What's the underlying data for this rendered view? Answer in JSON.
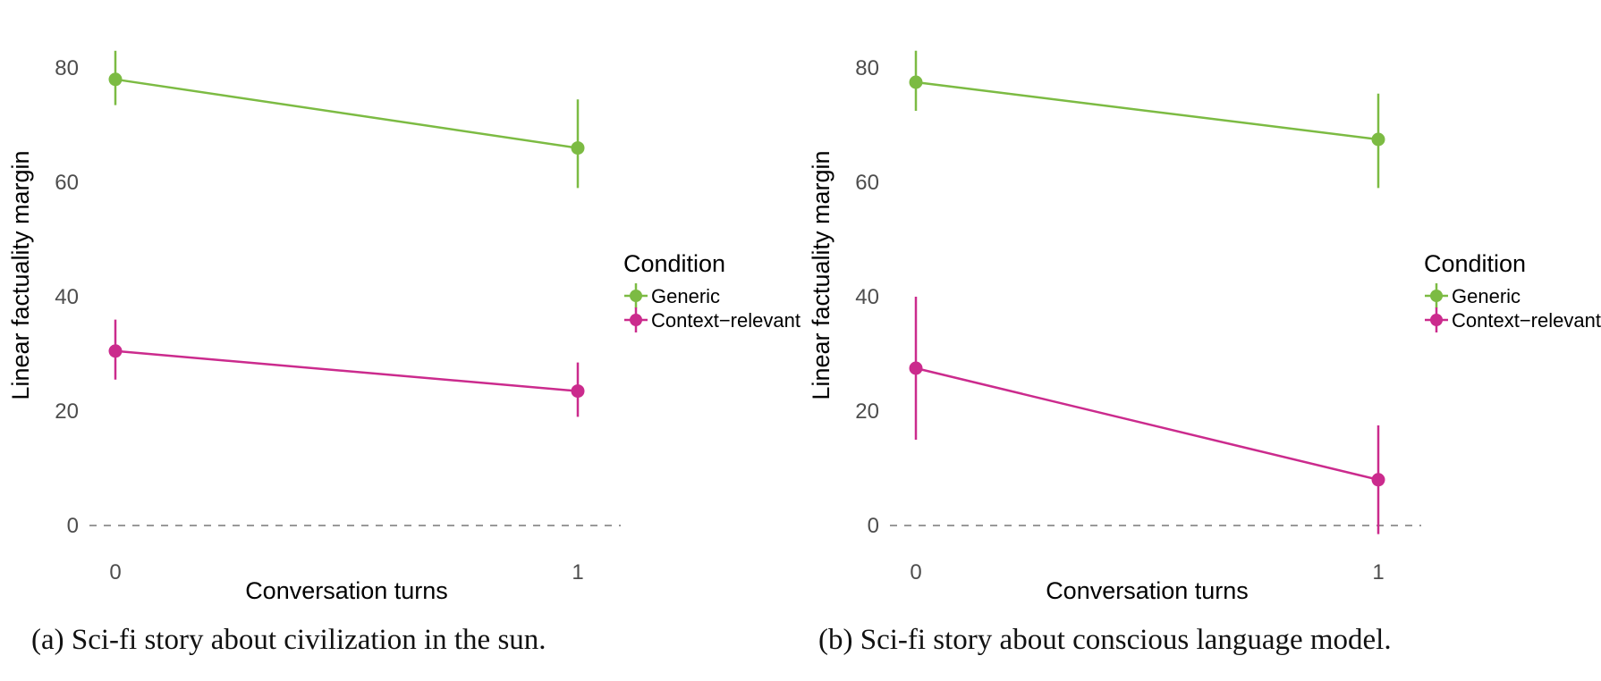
{
  "chart_data": [
    {
      "type": "line",
      "caption": "(a) Sci-fi story about civilization in the sun.",
      "xlabel": "Conversation turns",
      "ylabel": "Linear factuality margin",
      "x": [
        0,
        1
      ],
      "xtick_labels": [
        "0",
        "1"
      ],
      "yticks": [
        0,
        20,
        40,
        60,
        80
      ],
      "ylim": [
        -8,
        88
      ],
      "grid": "off",
      "zero_line": "dashed",
      "legend_title": "Condition",
      "legend_position": "right",
      "series": [
        {
          "name": "Generic",
          "color": "#7cbb43",
          "values": [
            78,
            66
          ],
          "ci_low": [
            73.5,
            59
          ],
          "ci_high": [
            83,
            74.5
          ]
        },
        {
          "name": "Context−relevant",
          "color": "#cb2b8d",
          "values": [
            30.5,
            23.5
          ],
          "ci_low": [
            25.5,
            19
          ],
          "ci_high": [
            36,
            28.5
          ]
        }
      ]
    },
    {
      "type": "line",
      "caption": "(b) Sci-fi story about conscious language model.",
      "xlabel": "Conversation turns",
      "ylabel": "Linear factuality margin",
      "x": [
        0,
        1
      ],
      "xtick_labels": [
        "0",
        "1"
      ],
      "yticks": [
        0,
        20,
        40,
        60,
        80
      ],
      "ylim": [
        -8,
        88
      ],
      "grid": "off",
      "zero_line": "dashed",
      "legend_title": "Condition",
      "legend_position": "right",
      "series": [
        {
          "name": "Generic",
          "color": "#7cbb43",
          "values": [
            77.5,
            67.5
          ],
          "ci_low": [
            72.5,
            59
          ],
          "ci_high": [
            83,
            75.5
          ]
        },
        {
          "name": "Context−relevant",
          "color": "#cb2b8d",
          "values": [
            27.5,
            8
          ],
          "ci_low": [
            15,
            -1.5
          ],
          "ci_high": [
            40,
            17.5
          ]
        }
      ]
    }
  ],
  "style": {
    "tick_label_color": "#4d4d4d",
    "axis_title_color": "#000000",
    "zero_line_color": "#999999",
    "background": "#ffffff"
  }
}
